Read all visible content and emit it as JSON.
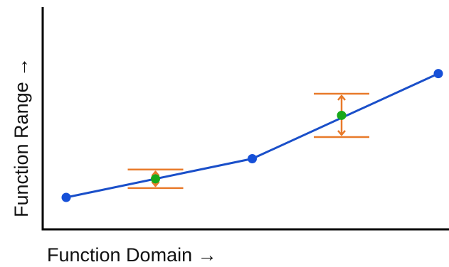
{
  "x_axis_label": "Function Domain →",
  "y_axis_label": "Function Range →",
  "colors": {
    "line": "#1a4fc9",
    "sample_point": "#1650d8",
    "interpolated_point": "#18a81a",
    "error_bar": "#e87a2a",
    "axis": "#000000"
  },
  "chart_data": {
    "type": "line",
    "grid": false,
    "legend": "none",
    "xlabel": "Function Domain →",
    "ylabel": "Function Range →",
    "sample_points": [
      {
        "x": 0.0,
        "y": 0.0
      },
      {
        "x": 0.5,
        "y": 0.25
      },
      {
        "x": 1.0,
        "y": 0.8
      }
    ],
    "interpolated_points": [
      {
        "x": 0.24,
        "y": 0.12,
        "error_low": 0.06,
        "error_high": 0.06
      },
      {
        "x": 0.74,
        "y": 0.53,
        "error_low": 0.14,
        "error_high": 0.14
      }
    ]
  }
}
